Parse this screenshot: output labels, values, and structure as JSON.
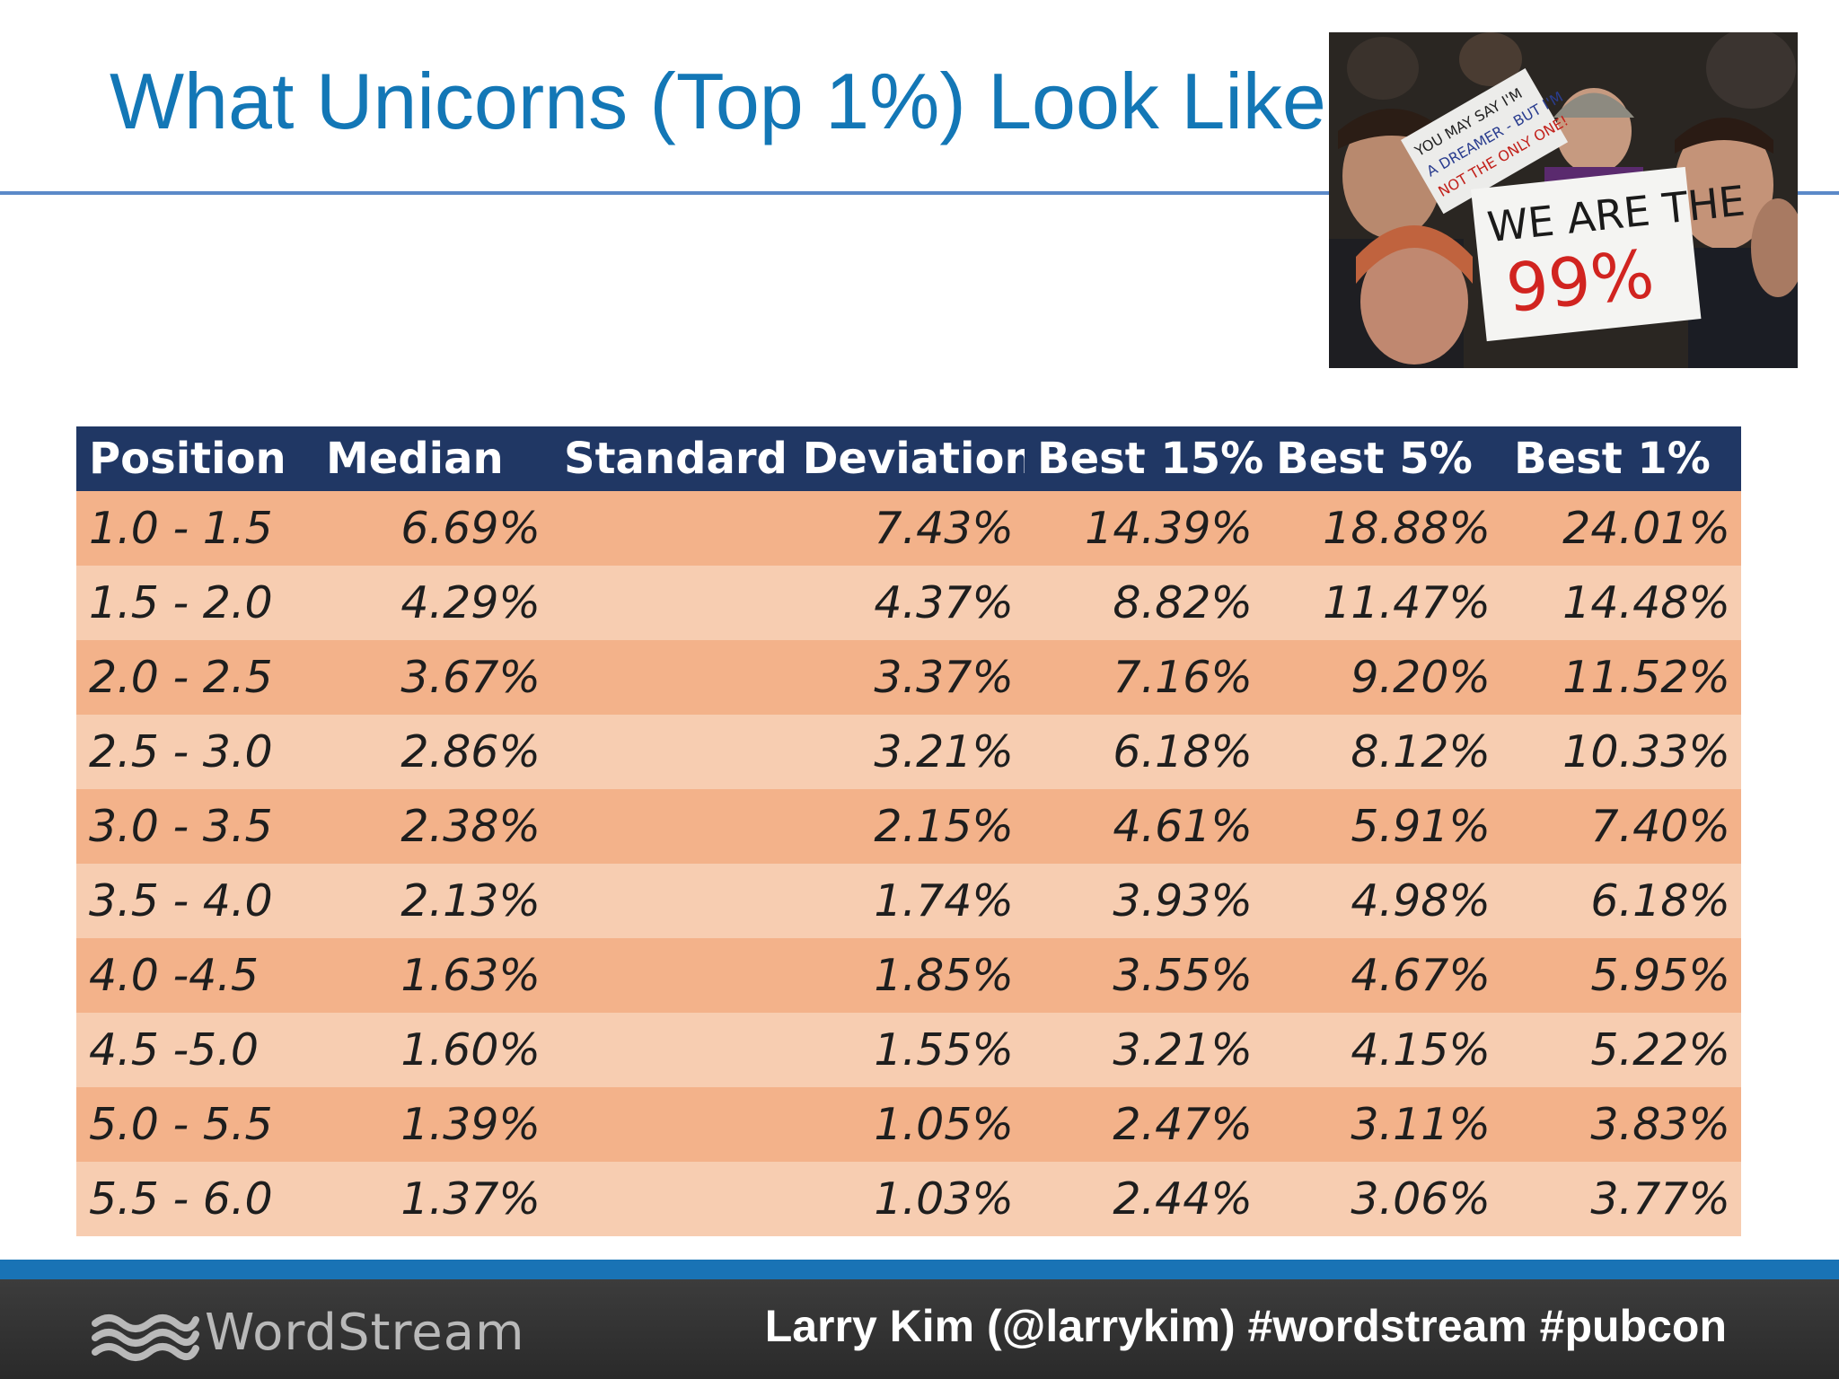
{
  "slide": {
    "title": "What Unicorns (Top 1%) Look Like"
  },
  "photo": {
    "sign_top_lines": [
      "YOU MAY SAY I'M",
      "A DREAMER - BUT I'M",
      "NOT THE ONLY ONE!"
    ],
    "sign_main_line1": "WE ARE THE",
    "sign_main_line2": "99%"
  },
  "table": {
    "headers": [
      "Position",
      "Median",
      "Standard Deviation",
      "Best 15%",
      "Best 5%",
      "Best 1%"
    ],
    "rows": [
      [
        "1.0 - 1.5",
        "6.69%",
        "7.43%",
        "14.39%",
        "18.88%",
        "24.01%"
      ],
      [
        "1.5 - 2.0",
        "4.29%",
        "4.37%",
        "8.82%",
        "11.47%",
        "14.48%"
      ],
      [
        "2.0 - 2.5",
        "3.67%",
        "3.37%",
        "7.16%",
        "9.20%",
        "11.52%"
      ],
      [
        "2.5 - 3.0",
        "2.86%",
        "3.21%",
        "6.18%",
        "8.12%",
        "10.33%"
      ],
      [
        "3.0 - 3.5",
        "2.38%",
        "2.15%",
        "4.61%",
        "5.91%",
        "7.40%"
      ],
      [
        "3.5 - 4.0",
        "2.13%",
        "1.74%",
        "3.93%",
        "4.98%",
        "6.18%"
      ],
      [
        "4.0 -4.5",
        "1.63%",
        "1.85%",
        "3.55%",
        "4.67%",
        "5.95%"
      ],
      [
        "4.5 -5.0",
        "1.60%",
        "1.55%",
        "3.21%",
        "4.15%",
        "5.22%"
      ],
      [
        "5.0 - 5.5",
        "1.39%",
        "1.05%",
        "2.47%",
        "3.11%",
        "3.83%"
      ],
      [
        "5.5 - 6.0",
        "1.37%",
        "1.03%",
        "2.44%",
        "3.06%",
        "3.77%"
      ]
    ]
  },
  "footer": {
    "logo_text": "WordStream",
    "logo_icon": "wave-icon",
    "credit": "Larry Kim (@larrykim) #wordstream #pubcon"
  },
  "colors": {
    "title": "#1377b6",
    "header_bg": "#203764",
    "row_dark": "#f3b28a",
    "row_light": "#f7cdb1",
    "footer_accent": "#1973b5"
  }
}
